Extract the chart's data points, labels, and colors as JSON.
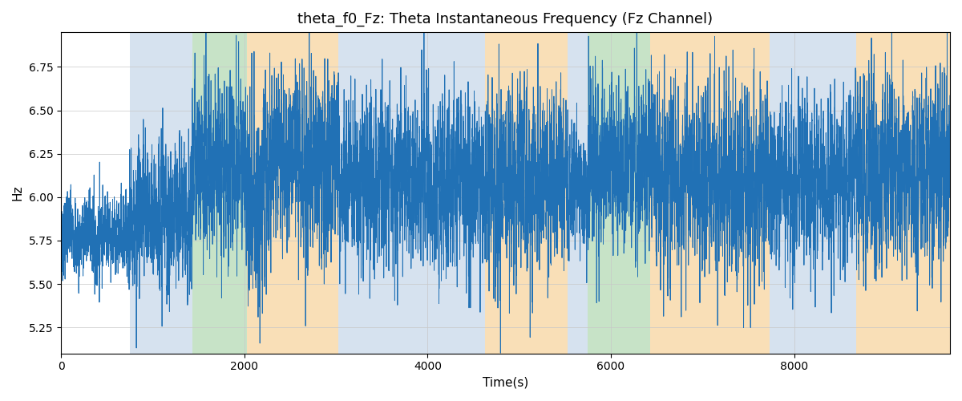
{
  "title": "theta_f0_Fz: Theta Instantaneous Frequency (Fz Channel)",
  "xlabel": "Time(s)",
  "ylabel": "Hz",
  "ylim": [
    5.1,
    6.95
  ],
  "xlim": [
    0,
    9700
  ],
  "line_color": "#2171b5",
  "line_width": 0.7,
  "background_color": "#ffffff",
  "grid_color": "#c8c8c8",
  "title_fontsize": 13,
  "label_fontsize": 11,
  "tick_fontsize": 10,
  "colored_bands": [
    {
      "xmin": 750,
      "xmax": 1430,
      "color": "#aec6e0",
      "alpha": 0.5
    },
    {
      "xmin": 1430,
      "xmax": 2030,
      "color": "#90c890",
      "alpha": 0.5
    },
    {
      "xmin": 2030,
      "xmax": 3030,
      "color": "#f5c070",
      "alpha": 0.5
    },
    {
      "xmin": 3030,
      "xmax": 4630,
      "color": "#aec6e0",
      "alpha": 0.5
    },
    {
      "xmin": 4630,
      "xmax": 5530,
      "color": "#f5c070",
      "alpha": 0.5
    },
    {
      "xmin": 5530,
      "xmax": 5750,
      "color": "#aec6e0",
      "alpha": 0.5
    },
    {
      "xmin": 5750,
      "xmax": 6430,
      "color": "#90c890",
      "alpha": 0.5
    },
    {
      "xmin": 6430,
      "xmax": 7730,
      "color": "#f5c070",
      "alpha": 0.5
    },
    {
      "xmin": 7730,
      "xmax": 8680,
      "color": "#aec6e0",
      "alpha": 0.5
    },
    {
      "xmin": 8680,
      "xmax": 9700,
      "color": "#f5c070",
      "alpha": 0.5
    }
  ],
  "seed": 7,
  "n_points": 9700,
  "segments": [
    {
      "start": 0,
      "end": 750,
      "base": 5.78,
      "noise": 0.1,
      "amp": 0.08
    },
    {
      "start": 750,
      "end": 1430,
      "base": 5.9,
      "noise": 0.18,
      "amp": 0.15
    },
    {
      "start": 1430,
      "end": 2030,
      "base": 6.2,
      "noise": 0.2,
      "amp": 0.18
    },
    {
      "start": 2030,
      "end": 2200,
      "base": 5.95,
      "noise": 0.25,
      "amp": 0.25
    },
    {
      "start": 2200,
      "end": 3030,
      "base": 6.2,
      "noise": 0.22,
      "amp": 0.2
    },
    {
      "start": 3030,
      "end": 4630,
      "base": 6.1,
      "noise": 0.2,
      "amp": 0.18
    },
    {
      "start": 4630,
      "end": 5530,
      "base": 6.1,
      "noise": 0.22,
      "amp": 0.2
    },
    {
      "start": 5530,
      "end": 5750,
      "base": 6.05,
      "noise": 0.15,
      "amp": 0.12
    },
    {
      "start": 5750,
      "end": 6430,
      "base": 6.2,
      "noise": 0.2,
      "amp": 0.18
    },
    {
      "start": 6430,
      "end": 7730,
      "base": 6.1,
      "noise": 0.22,
      "amp": 0.2
    },
    {
      "start": 7730,
      "end": 8680,
      "base": 6.1,
      "noise": 0.2,
      "amp": 0.18
    },
    {
      "start": 8680,
      "end": 9700,
      "base": 6.15,
      "noise": 0.22,
      "amp": 0.2
    }
  ]
}
